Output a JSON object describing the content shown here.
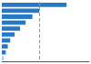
{
  "chart_data": {
    "type": "bar",
    "orientation": "horizontal",
    "categories": [
      null,
      null,
      null,
      null,
      null,
      null,
      null,
      null,
      null,
      null
    ],
    "values": [
      81.5,
      47.0,
      38.5,
      30.0,
      23.0,
      16.0,
      10.5,
      7.5,
      5.0,
      2.5
    ],
    "colors": [
      "#2878c8",
      "#2878c8",
      "#2878c8",
      "#2878c8",
      "#2878c8",
      "#2878c8",
      "#2878c8",
      "#2878c8",
      "#2878c8",
      "#a8d0f0"
    ],
    "xlim": [
      0,
      110
    ],
    "reference_line": 47.0,
    "tick_labels": false,
    "grid": false
  }
}
